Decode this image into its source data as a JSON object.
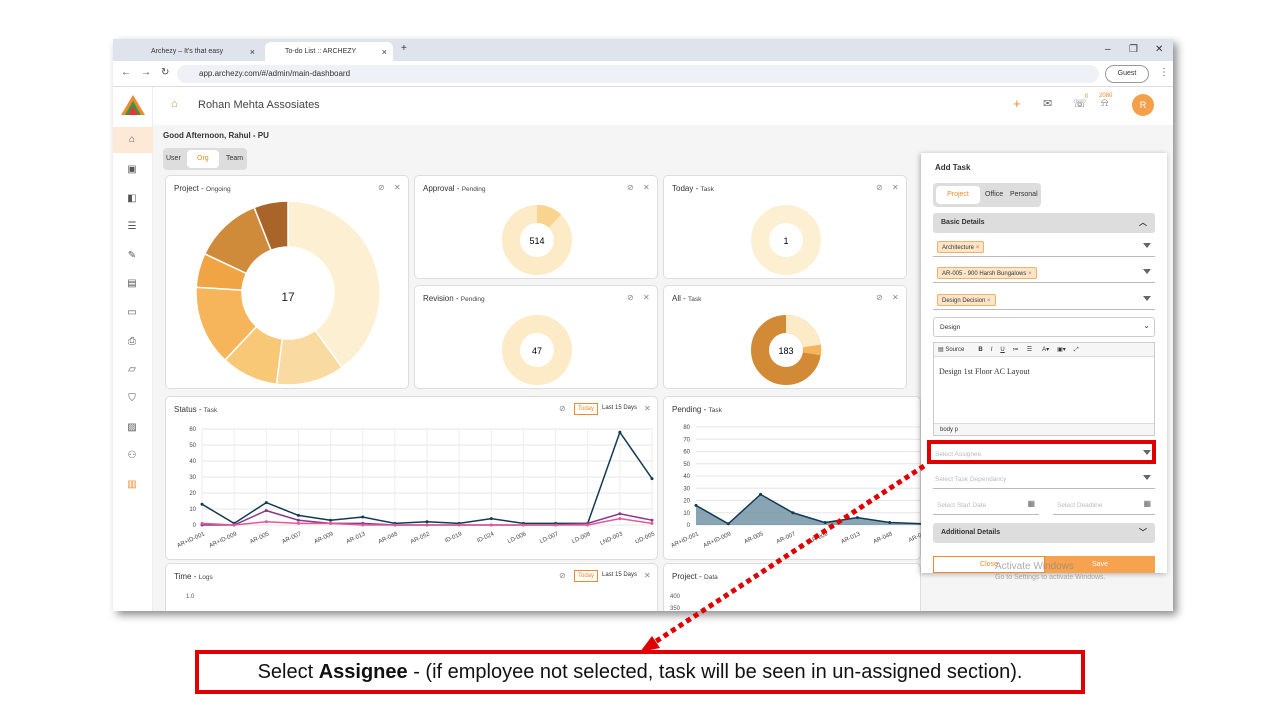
{
  "browser": {
    "tab1": "Archezy – It's that easy",
    "tab2": "To-do List :: ARCHEZY",
    "url": "app.archezy.com/#/admin/main-dashboard",
    "guest": "Guest"
  },
  "header": {
    "company": "Rohan Mehta Assosiates",
    "notif_count_1": "0",
    "notif_count_2": "2080",
    "avatar": "R"
  },
  "greeting": "Good Afternoon, Rahul - PU",
  "toggle": {
    "user": "User",
    "org": "Org",
    "team": "Team"
  },
  "cards": {
    "project": {
      "title": "Project - ",
      "sub": "Ongoing",
      "center": "17"
    },
    "approval": {
      "title": "Approval - ",
      "sub": "Pending",
      "center": "514"
    },
    "today": {
      "title": "Today - ",
      "sub": "Task",
      "center": "1"
    },
    "revision": {
      "title": "Revision - ",
      "sub": "Pending",
      "center": "47"
    },
    "all": {
      "title": "All - ",
      "sub": "Task",
      "center": "183"
    },
    "status": {
      "title": "Status - ",
      "sub": "Task",
      "today": "Today",
      "last15": "Last 15 Days"
    },
    "pending": {
      "title": "Pending - ",
      "sub": "Task"
    },
    "time": {
      "title": "Time - ",
      "sub": "Logs",
      "today": "Today",
      "last15": "Last 15 Days",
      "y1": "1.0"
    },
    "projdata": {
      "title": "Project - ",
      "sub": "Data",
      "y1": "400",
      "y2": "350"
    }
  },
  "chart_data": [
    {
      "type": "pie",
      "values": [
        40,
        12,
        10,
        14,
        6,
        12,
        6
      ],
      "center_label": "17"
    },
    {
      "type": "line",
      "yticks": [
        "60",
        "50",
        "40",
        "30",
        "20",
        "10",
        "0"
      ],
      "ylim": [
        0,
        60
      ],
      "categories": [
        "AR+ID-001",
        "AR+ID-009",
        "AR-005",
        "AR-007",
        "AR-009",
        "AR-013",
        "AR-048",
        "AR-052",
        "ID-019",
        "ID-024",
        "LD-006",
        "LD-007",
        "LD-008",
        "LND-003",
        "UD-005"
      ],
      "series": [
        {
          "values": [
            13,
            1,
            14,
            6,
            3,
            5,
            1,
            2,
            1,
            4,
            1,
            1,
            1,
            58,
            29
          ]
        },
        {
          "values": [
            0,
            0,
            9,
            3,
            1,
            1,
            0,
            0,
            0,
            0,
            0,
            0,
            1,
            7,
            3
          ]
        },
        {
          "values": [
            1,
            0,
            2,
            1,
            1,
            0,
            0,
            0,
            0,
            0,
            0,
            0,
            0,
            4,
            1
          ]
        }
      ]
    },
    {
      "type": "area",
      "yticks": [
        "80",
        "70",
        "60",
        "50",
        "40",
        "30",
        "20",
        "10",
        "0"
      ],
      "ylim": [
        0,
        80
      ],
      "categories": [
        "AR+ID-001",
        "AR+ID-009",
        "AR-005",
        "AR-007",
        "AR-009",
        "AR-013",
        "AR-048",
        "AR-05"
      ],
      "values": [
        16,
        1,
        25,
        10,
        2,
        6,
        2,
        1
      ]
    }
  ],
  "panel": {
    "title": "Add Task",
    "tabs": [
      "Project",
      "Office",
      "Personal"
    ],
    "basic": "Basic Details",
    "chip1": "Architecture",
    "chip2": "AR-005 - 900 Harsh Bungalows",
    "chip3": "Design Decision",
    "category": "Design",
    "editor_tools": "Source",
    "editor_text": "Design 1st Floor AC Layout",
    "editor_path": "body  p",
    "assignee": "Select Assignee",
    "dependency": "Select Task Dependancy",
    "start": "Select Start Date",
    "deadline": "Select Deadline",
    "additional": "Additional Details",
    "close": "Close",
    "save": "Save",
    "watermark1": "Activate Windows",
    "watermark2": "Go to Settings to activate Windows."
  },
  "callout": {
    "pre": "Select ",
    "bold": "Assignee",
    "post": " - (if employee not selected, task will be seen in un-assigned section)."
  },
  "colors": {
    "accent": "#f08a2c",
    "highlight": "#e00000"
  }
}
